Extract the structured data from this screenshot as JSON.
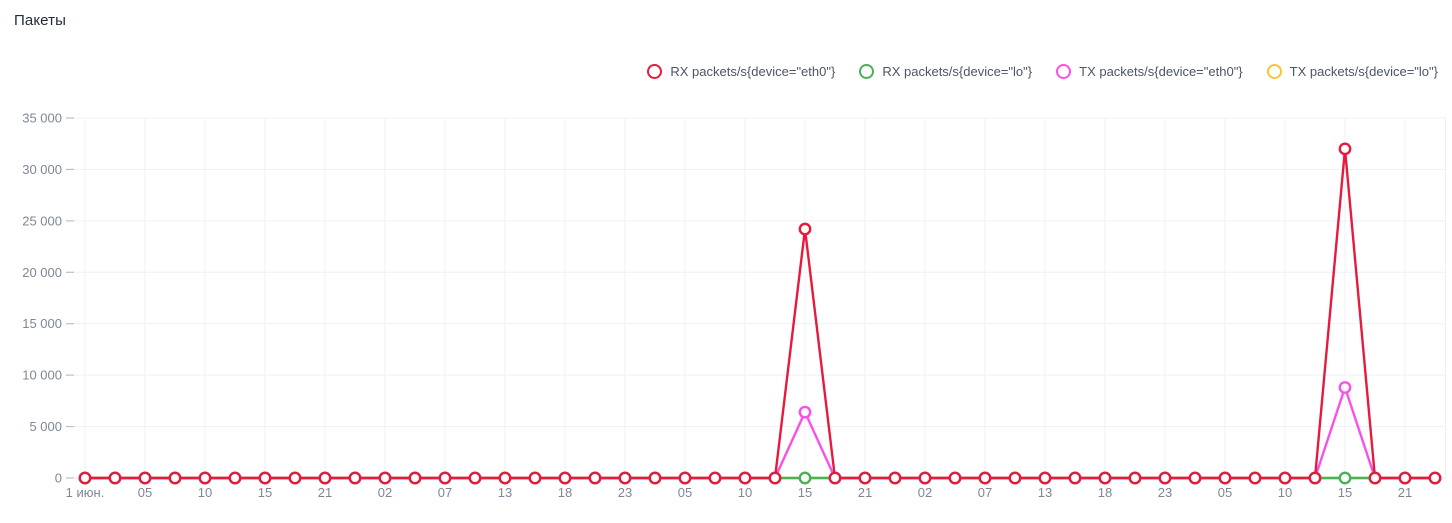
{
  "title": "Пакеты",
  "colors": {
    "grid": "#eef1f6",
    "tick_dash": "#b9c0cb",
    "axis_text": "#7e8796",
    "legend_text": "#4c5566",
    "title_text": "#232c3d",
    "marker_fill": "#ffffff"
  },
  "chart_data": {
    "type": "line",
    "title": "Пакеты",
    "xlabel": "",
    "ylabel": "",
    "ylim": [
      0,
      35000
    ],
    "grid": true,
    "legend_position": "top-right",
    "y_ticks": [
      "0",
      "5 000",
      "10 000",
      "15 000",
      "20 000",
      "25 000",
      "30 000",
      "35 000"
    ],
    "y_tick_values": [
      0,
      5000,
      10000,
      15000,
      20000,
      25000,
      30000,
      35000
    ],
    "x_labels": [
      "1 июн.",
      "05",
      "10",
      "15",
      "21",
      "02",
      "07",
      "13",
      "18",
      "23",
      "05",
      "10",
      "15",
      "21",
      "02",
      "07",
      "13",
      "18",
      "23",
      "05",
      "10",
      "15",
      "21"
    ],
    "label_every": 2,
    "n_points": 46,
    "series": [
      {
        "id": "rx-eth0",
        "name": "RX packets/s{device=\"eth0\"}",
        "color": "#e51b3d",
        "values": [
          0,
          0,
          0,
          0,
          0,
          0,
          0,
          0,
          0,
          0,
          0,
          0,
          0,
          0,
          0,
          0,
          0,
          0,
          0,
          0,
          0,
          0,
          0,
          0,
          24200,
          0,
          0,
          0,
          0,
          0,
          0,
          0,
          0,
          0,
          0,
          0,
          0,
          0,
          0,
          0,
          0,
          0,
          32000,
          0,
          0,
          0
        ]
      },
      {
        "id": "rx-lo",
        "name": "RX packets/s{device=\"lo\"}",
        "color": "#49b157",
        "values": [
          0,
          0,
          0,
          0,
          0,
          0,
          0,
          0,
          0,
          0,
          0,
          0,
          0,
          0,
          0,
          0,
          0,
          0,
          0,
          0,
          0,
          0,
          0,
          0,
          0,
          0,
          0,
          0,
          0,
          0,
          0,
          0,
          0,
          0,
          0,
          0,
          0,
          0,
          0,
          0,
          0,
          0,
          0,
          0,
          0,
          0
        ]
      },
      {
        "id": "tx-eth0",
        "name": "TX packets/s{device=\"eth0\"}",
        "color": "#fb4fe9",
        "values": [
          0,
          0,
          0,
          0,
          0,
          0,
          0,
          0,
          0,
          0,
          0,
          0,
          0,
          0,
          0,
          0,
          0,
          0,
          0,
          0,
          0,
          0,
          0,
          0,
          6400,
          0,
          0,
          0,
          0,
          0,
          0,
          0,
          0,
          0,
          0,
          0,
          0,
          0,
          0,
          0,
          0,
          0,
          8800,
          0,
          0,
          0
        ]
      },
      {
        "id": "tx-lo",
        "name": "TX packets/s{device=\"lo\"}",
        "color": "#fdc42f",
        "values": [
          0,
          0,
          0,
          0,
          0,
          0,
          0,
          0,
          0,
          0,
          0,
          0,
          0,
          0,
          0,
          0,
          0,
          0,
          0,
          0,
          0,
          0,
          0,
          0,
          0,
          0,
          0,
          0,
          0,
          0,
          0,
          0,
          0,
          0,
          0,
          0,
          0,
          0,
          0,
          0,
          0,
          0,
          0,
          0,
          0,
          0
        ]
      }
    ]
  }
}
